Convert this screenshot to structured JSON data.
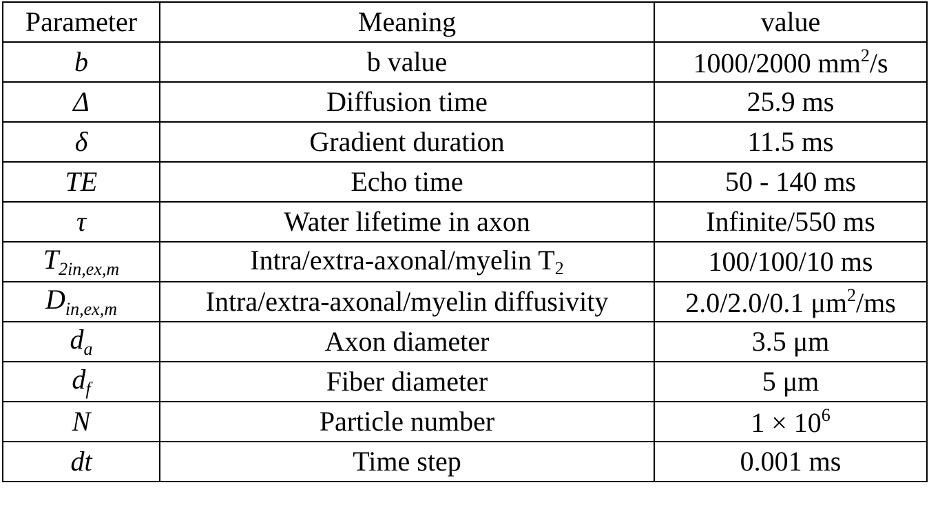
{
  "table": {
    "headers": {
      "parameter": "Parameter",
      "meaning": "Meaning",
      "value": "value"
    },
    "rows": [
      {
        "symbol": "b",
        "symbol_sub": "",
        "meaning": "b value",
        "meaning_sub": "",
        "value": "1000/2000 mm",
        "value_sup": "2",
        "value_tail": "/s"
      },
      {
        "symbol": "Δ",
        "symbol_sub": "",
        "meaning": "Diffusion time",
        "meaning_sub": "",
        "value": "25.9 ms",
        "value_sup": "",
        "value_tail": ""
      },
      {
        "symbol": "δ",
        "symbol_sub": "",
        "meaning": "Gradient duration",
        "meaning_sub": "",
        "value": "11.5 ms",
        "value_sup": "",
        "value_tail": ""
      },
      {
        "symbol": "TE",
        "symbol_sub": "",
        "meaning": "Echo time",
        "meaning_sub": "",
        "value": "50 - 140 ms",
        "value_sup": "",
        "value_tail": ""
      },
      {
        "symbol": "τ",
        "symbol_sub": "",
        "meaning": "Water lifetime in axon",
        "meaning_sub": "",
        "value": "Infinite/550 ms",
        "value_sup": "",
        "value_tail": ""
      },
      {
        "symbol": "T",
        "symbol_sub": "2in,ex,m",
        "meaning": "Intra/extra-axonal/myelin T",
        "meaning_sub": "2",
        "value": "100/100/10 ms",
        "value_sup": "",
        "value_tail": ""
      },
      {
        "symbol": "D",
        "symbol_sub": "in,ex,m",
        "meaning": "Intra/extra-axonal/myelin diffusivity",
        "meaning_sub": "",
        "value": "2.0/2.0/0.1 μm",
        "value_sup": "2",
        "value_tail": "/ms"
      },
      {
        "symbol": "d",
        "symbol_sub": "a",
        "meaning": "Axon diameter",
        "meaning_sub": "",
        "value": "3.5 μm",
        "value_sup": "",
        "value_tail": ""
      },
      {
        "symbol": "d",
        "symbol_sub": "f",
        "meaning": "Fiber diameter",
        "meaning_sub": "",
        "value": "5 μm",
        "value_sup": "",
        "value_tail": ""
      },
      {
        "symbol": "N",
        "symbol_sub": "",
        "meaning": "Particle number",
        "meaning_sub": "",
        "value": "1 × 10",
        "value_sup": "6",
        "value_tail": ""
      },
      {
        "symbol": "dt",
        "symbol_sub": "",
        "meaning": "Time step",
        "meaning_sub": "",
        "value": "0.001 ms",
        "value_sup": "",
        "value_tail": ""
      }
    ]
  }
}
